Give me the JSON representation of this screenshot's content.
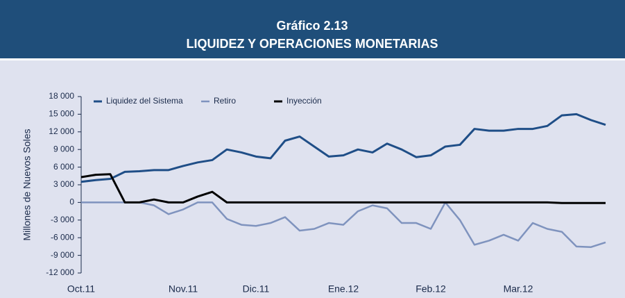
{
  "chart_data": {
    "type": "line",
    "title": "Gráfico 2.13",
    "subtitle": "LIQUIDEZ Y OPERACIONES MONETARIAS",
    "y_label": "Millones de Nuevos Soles",
    "categories": [
      "Oct.11",
      null,
      null,
      null,
      null,
      null,
      null,
      "Nov.11",
      null,
      null,
      null,
      null,
      "Dic.11",
      null,
      null,
      null,
      null,
      null,
      "Ene.12",
      null,
      null,
      null,
      null,
      null,
      "Feb.12",
      null,
      null,
      null,
      null,
      null,
      "Mar.12",
      null,
      null,
      null,
      null,
      null,
      null
    ],
    "series": [
      {
        "name": "Liquidez del Sistema",
        "color": "#1f4e87",
        "width": 3,
        "values": [
          3500,
          3800,
          4000,
          5200,
          5300,
          5500,
          5500,
          6200,
          6800,
          7200,
          9000,
          8500,
          7800,
          7500,
          10500,
          11200,
          9500,
          7800,
          8000,
          9000,
          8500,
          10000,
          9000,
          7700,
          8000,
          9500,
          9800,
          12500,
          12200,
          12200,
          12500,
          12500,
          13000,
          14800,
          15000,
          14000,
          13200
        ]
      },
      {
        "name": "Retiro",
        "color": "#7f93be",
        "width": 2.5,
        "values": [
          0,
          0,
          0,
          0,
          0,
          -500,
          -2000,
          -1200,
          0,
          0,
          -2800,
          -3800,
          -4000,
          -3500,
          -2500,
          -4800,
          -4500,
          -3500,
          -3800,
          -1500,
          -500,
          -1000,
          -3500,
          -3500,
          -4500,
          0,
          -3000,
          -7200,
          -6500,
          -5500,
          -6500,
          -3500,
          -4500,
          -5000,
          -7500,
          -7600,
          -6800
        ]
      },
      {
        "name": "Inyección",
        "color": "#000000",
        "width": 3,
        "values": [
          4300,
          4700,
          4800,
          0,
          0,
          500,
          0,
          0,
          1000,
          1800,
          0,
          0,
          0,
          0,
          0,
          0,
          0,
          0,
          0,
          0,
          0,
          0,
          0,
          0,
          0,
          0,
          0,
          0,
          0,
          0,
          0,
          0,
          0,
          -100,
          -100,
          -100,
          -100
        ]
      }
    ],
    "ylim": [
      -12000,
      18000
    ],
    "yticks": [
      {
        "value": -12000,
        "label": "-12 000"
      },
      {
        "value": -9000,
        "label": "-9 000"
      },
      {
        "value": -6000,
        "label": "-6 000"
      },
      {
        "value": -3000,
        "label": "-3 000"
      },
      0,
      {
        "value": 3000,
        "label": "3 000"
      },
      {
        "value": 6000,
        "label": "6 000"
      },
      {
        "value": 9000,
        "label": "9 000"
      },
      {
        "value": 12000,
        "label": "12 000"
      },
      {
        "value": 15000,
        "label": "15 000"
      },
      {
        "value": 18000,
        "label": "18 000"
      }
    ],
    "legend": "top-left"
  }
}
